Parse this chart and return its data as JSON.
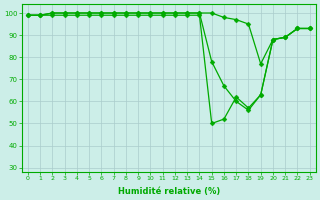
{
  "title": "",
  "xlabel": "Humidité relative (%)",
  "ylabel": "",
  "bg_color": "#cceee8",
  "grid_color": "#aacccc",
  "line_color": "#00aa00",
  "ylim": [
    28,
    104
  ],
  "xlim": [
    -0.5,
    23.5
  ],
  "yticks": [
    30,
    40,
    50,
    60,
    70,
    80,
    90,
    100
  ],
  "xticks": [
    0,
    1,
    2,
    3,
    4,
    5,
    6,
    7,
    8,
    9,
    10,
    11,
    12,
    13,
    14,
    15,
    16,
    17,
    18,
    19,
    20,
    21,
    22,
    23
  ],
  "series1": [
    99,
    99,
    100,
    100,
    100,
    100,
    100,
    100,
    100,
    100,
    100,
    100,
    100,
    100,
    100,
    100,
    98,
    97,
    95,
    77,
    88,
    89,
    93,
    93
  ],
  "series2": [
    99,
    99,
    100,
    100,
    100,
    100,
    100,
    100,
    100,
    100,
    100,
    100,
    100,
    100,
    100,
    78,
    67,
    60,
    56,
    63,
    88,
    89,
    93,
    93
  ],
  "series3": [
    99,
    99,
    99,
    99,
    99,
    99,
    99,
    99,
    99,
    99,
    99,
    99,
    99,
    99,
    99,
    50,
    52,
    62,
    57,
    63,
    88,
    89,
    93,
    93
  ]
}
